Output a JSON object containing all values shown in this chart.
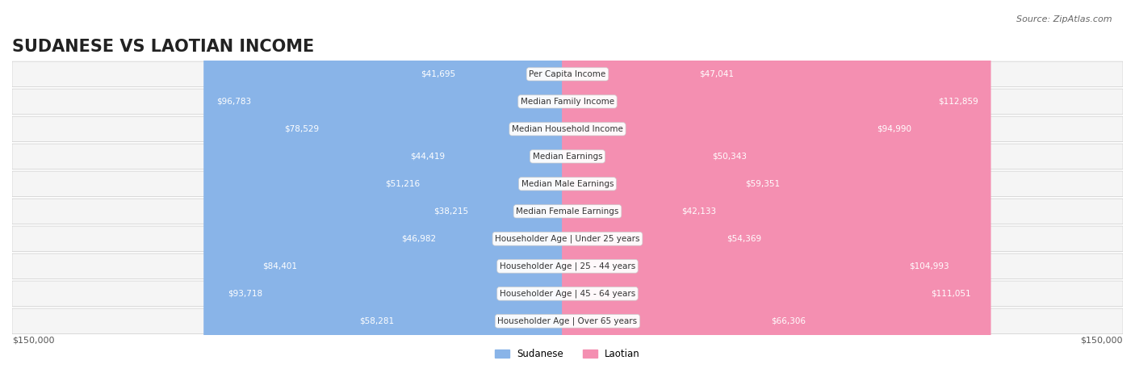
{
  "title": "SUDANESE VS LAOTIAN INCOME",
  "source": "Source: ZipAtlas.com",
  "categories": [
    "Per Capita Income",
    "Median Family Income",
    "Median Household Income",
    "Median Earnings",
    "Median Male Earnings",
    "Median Female Earnings",
    "Householder Age | Under 25 years",
    "Householder Age | 25 - 44 years",
    "Householder Age | 45 - 64 years",
    "Householder Age | Over 65 years"
  ],
  "sudanese": [
    41695,
    96783,
    78529,
    44419,
    51216,
    38215,
    46982,
    84401,
    93718,
    58281
  ],
  "laotian": [
    47041,
    112859,
    94990,
    50343,
    59351,
    42133,
    54369,
    104993,
    111051,
    66306
  ],
  "sudanese_labels": [
    "$41,695",
    "$96,783",
    "$78,529",
    "$44,419",
    "$51,216",
    "$38,215",
    "$46,982",
    "$84,401",
    "$93,718",
    "$58,281"
  ],
  "laotian_labels": [
    "$47,041",
    "$112,859",
    "$94,990",
    "$50,343",
    "$59,351",
    "$42,133",
    "$54,369",
    "$104,993",
    "$111,051",
    "$66,306"
  ],
  "blue_color": "#89b4e8",
  "pink_color": "#f48fb1",
  "bar_bg_color": "#f0f0f0",
  "row_bg_color": "#f5f5f5",
  "max_value": 150000,
  "background_color": "#ffffff",
  "title_fontsize": 15,
  "label_fontsize": 8.5,
  "axis_label": "$150,000"
}
